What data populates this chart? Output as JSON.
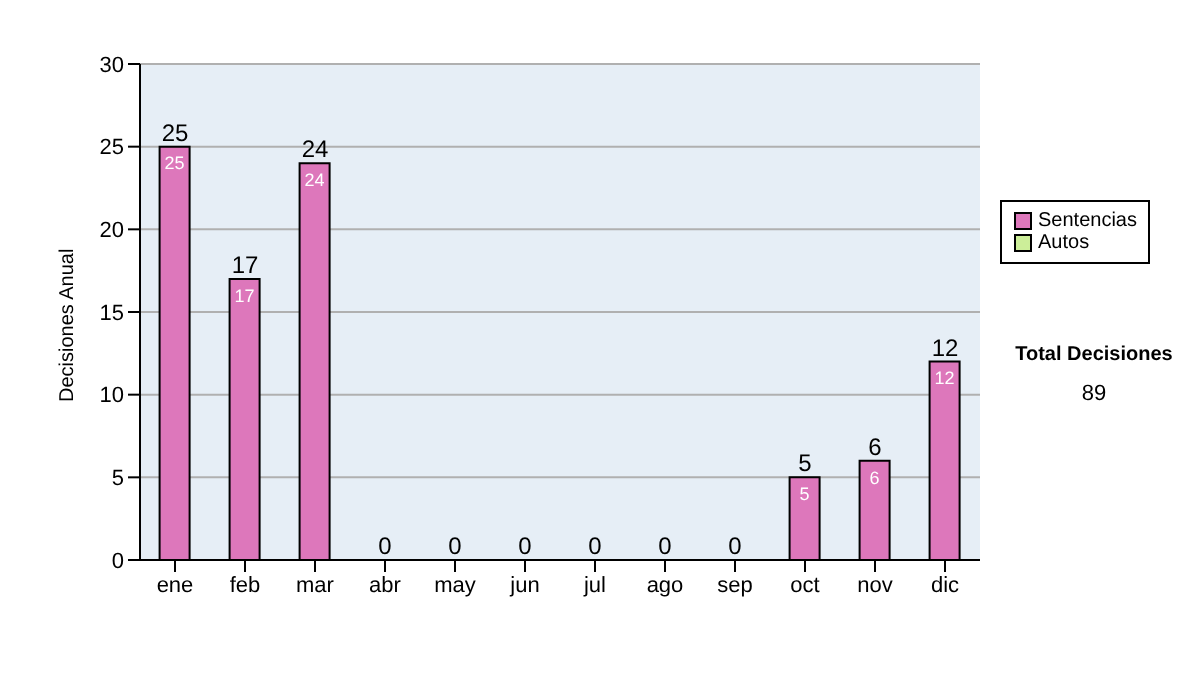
{
  "chart_data": {
    "type": "bar",
    "ylabel": "Decisiones Anual",
    "categories": [
      "ene",
      "feb",
      "mar",
      "abr",
      "may",
      "jun",
      "jul",
      "ago",
      "sep",
      "oct",
      "nov",
      "dic"
    ],
    "series": [
      {
        "name": "Sentencias",
        "color": "#dd77bb",
        "values": [
          25,
          17,
          24,
          0,
          0,
          0,
          0,
          0,
          0,
          5,
          6,
          12
        ],
        "value_labels": [
          "25",
          "17",
          "24",
          null,
          null,
          null,
          null,
          null,
          null,
          "5",
          "6",
          "12"
        ]
      },
      {
        "name": "Autos",
        "color": "#ccee99",
        "values": [
          0,
          0,
          0,
          0,
          0,
          0,
          0,
          0,
          0,
          0,
          0,
          0
        ]
      }
    ],
    "stacked": true,
    "totals": [
      "25",
      "17",
      "24",
      "0",
      "0",
      "0",
      "0",
      "0",
      "0",
      "5",
      "6",
      "12"
    ],
    "ylim": [
      0,
      30
    ],
    "yticks": [
      0,
      5,
      10,
      15,
      20,
      25,
      30
    ],
    "grid": "y",
    "legend": "right",
    "annotations": [
      "Total Decisiones",
      "89"
    ]
  }
}
